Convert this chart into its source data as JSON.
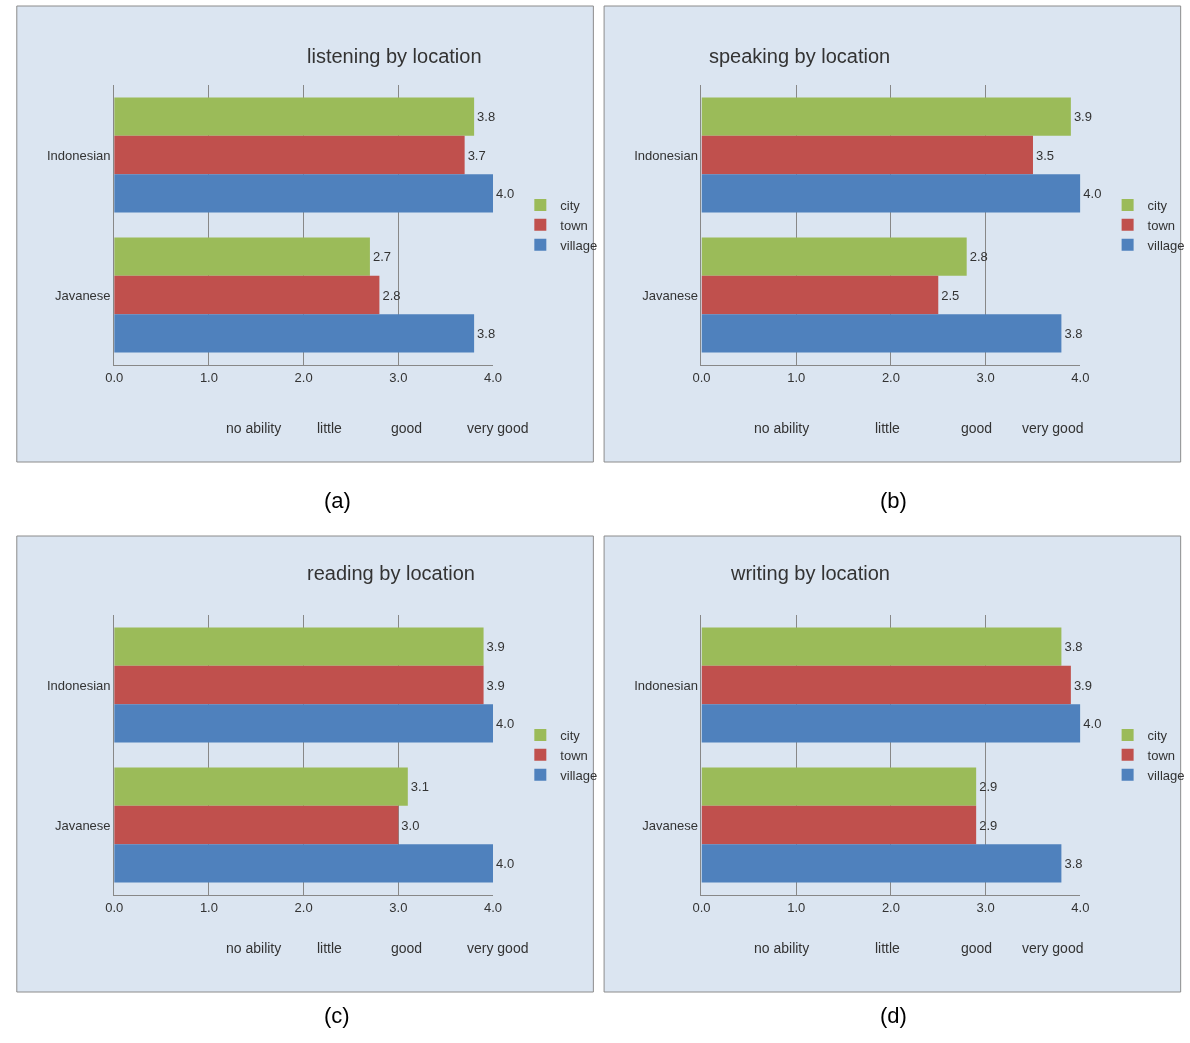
{
  "chart_data": [
    {
      "type": "bar",
      "orientation": "horizontal",
      "title": "listening by location",
      "annotations": [
        "no ability",
        "little",
        "good",
        "very good",
        "(a)"
      ],
      "categories": [
        "Indonesian",
        "Javanese"
      ],
      "series": [
        {
          "name": "city",
          "color": "#9bbb59",
          "values": [
            3.8,
            2.7
          ],
          "value_labels": [
            "3.8",
            "2.7"
          ]
        },
        {
          "name": "town",
          "color": "#c0504d",
          "values": [
            3.7,
            2.8
          ],
          "value_labels": [
            "3.7",
            "2.8"
          ]
        },
        {
          "name": "village",
          "color": "#4f81bd",
          "values": [
            4.0,
            3.8
          ],
          "value_labels": [
            "4.0",
            "3.8"
          ]
        }
      ],
      "xlim": [
        0,
        4
      ],
      "xticks": [
        {
          "value": 0,
          "label": "0.0"
        },
        {
          "value": 1,
          "label": "1.0"
        },
        {
          "value": 2,
          "label": "2.0"
        },
        {
          "value": 3,
          "label": "3.0"
        },
        {
          "value": 4,
          "label": "4.0"
        }
      ],
      "grid": "x",
      "legend": "right"
    },
    {
      "type": "bar",
      "orientation": "horizontal",
      "title": "speaking by location",
      "annotations": [
        "no ability",
        "little",
        "good",
        "very good",
        "(b)"
      ],
      "categories": [
        "Indonesian",
        "Javanese"
      ],
      "series": [
        {
          "name": "city",
          "color": "#9bbb59",
          "values": [
            3.9,
            2.8
          ],
          "value_labels": [
            "3.9",
            "2.8"
          ]
        },
        {
          "name": "town",
          "color": "#c0504d",
          "values": [
            3.5,
            2.5
          ],
          "value_labels": [
            "3.5",
            "2.5"
          ]
        },
        {
          "name": "village",
          "color": "#4f81bd",
          "values": [
            4.0,
            3.8
          ],
          "value_labels": [
            "4.0",
            "3.8"
          ]
        }
      ],
      "xlim": [
        0,
        4
      ],
      "xticks": [
        {
          "value": 0,
          "label": "0.0"
        },
        {
          "value": 1,
          "label": "1.0"
        },
        {
          "value": 2,
          "label": "2.0"
        },
        {
          "value": 3,
          "label": "3.0"
        },
        {
          "value": 4,
          "label": "4.0"
        }
      ],
      "grid": "x",
      "legend": "right"
    },
    {
      "type": "bar",
      "orientation": "horizontal",
      "title": "reading by location",
      "annotations": [
        "no ability",
        "little",
        "good",
        "very good",
        "(c)"
      ],
      "categories": [
        "Indonesian",
        "Javanese"
      ],
      "series": [
        {
          "name": "city",
          "color": "#9bbb59",
          "values": [
            3.9,
            3.1
          ],
          "value_labels": [
            "3.9",
            "3.1"
          ]
        },
        {
          "name": "town",
          "color": "#c0504d",
          "values": [
            3.9,
            3.0
          ],
          "value_labels": [
            "3.9",
            "3.0"
          ]
        },
        {
          "name": "village",
          "color": "#4f81bd",
          "values": [
            4.0,
            4.0
          ],
          "value_labels": [
            "4.0",
            "4.0"
          ]
        }
      ],
      "xlim": [
        0,
        4
      ],
      "xticks": [
        {
          "value": 0,
          "label": "0.0"
        },
        {
          "value": 1,
          "label": "1.0"
        },
        {
          "value": 2,
          "label": "2.0"
        },
        {
          "value": 3,
          "label": "3.0"
        },
        {
          "value": 4,
          "label": "4.0"
        }
      ],
      "grid": "x",
      "legend": "right"
    },
    {
      "type": "bar",
      "orientation": "horizontal",
      "title": "writing by location",
      "annotations": [
        "no ability",
        "little",
        "good",
        "very good",
        "(d)"
      ],
      "categories": [
        "Indonesian",
        "Javanese"
      ],
      "series": [
        {
          "name": "city",
          "color": "#9bbb59",
          "values": [
            3.8,
            2.9
          ],
          "value_labels": [
            "3.8",
            "2.9"
          ]
        },
        {
          "name": "town",
          "color": "#c0504d",
          "values": [
            3.9,
            2.9
          ],
          "value_labels": [
            "3.9",
            "2.9"
          ]
        },
        {
          "name": "village",
          "color": "#4f81bd",
          "values": [
            4.0,
            3.8
          ],
          "value_labels": [
            "4.0",
            "3.8"
          ]
        }
      ],
      "xlim": [
        0,
        4
      ],
      "xticks": [
        {
          "value": 0,
          "label": "0.0"
        },
        {
          "value": 1,
          "label": "1.0"
        },
        {
          "value": 2,
          "label": "2.0"
        },
        {
          "value": 3,
          "label": "3.0"
        },
        {
          "value": 4,
          "label": "4.0"
        }
      ],
      "grid": "x",
      "legend": "right"
    }
  ]
}
